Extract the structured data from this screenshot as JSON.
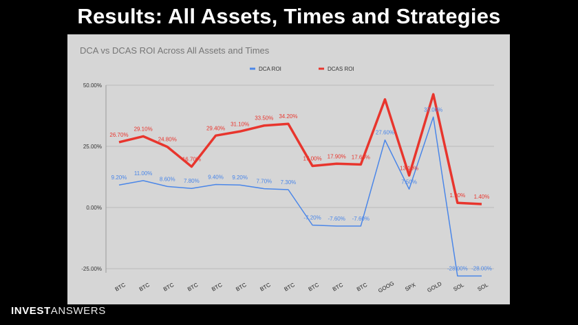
{
  "slide": {
    "title": "Results: All Assets, Times and Strategies",
    "brand_bold": "INVEST",
    "brand_light": "ANSWERS"
  },
  "colors": {
    "dca": "#4a86e8",
    "dcas": "#e8352d",
    "panel_bg": "#d6d6d6",
    "grid": "#b9b9b9"
  },
  "chart_data": {
    "type": "line",
    "title": "DCA vs DCAS ROI Across All Assets and Times",
    "legend_position": "top-center",
    "grid": true,
    "categories": [
      "BTC",
      "BTC",
      "BTC",
      "BTC",
      "BTC",
      "BTC",
      "BTC",
      "BTC",
      "BTC",
      "BTC",
      "BTC",
      "GOOG",
      "SPX",
      "GOLD",
      "SOL",
      "SOL"
    ],
    "ylim": [
      -25,
      50
    ],
    "yticks": [
      50,
      25,
      0,
      -25
    ],
    "ytick_labels": [
      "50.00%",
      "25.00%",
      "0.00%",
      "-25.00%"
    ],
    "series": [
      {
        "name": "DCA ROI",
        "color": "#4a86e8",
        "values": [
          9.2,
          11.0,
          8.6,
          7.8,
          9.4,
          9.2,
          7.7,
          7.3,
          -7.2,
          -7.6,
          -7.6,
          27.6,
          7.5,
          37.0,
          -28.0,
          -28.0
        ],
        "labels": [
          "9.20%",
          "11.00%",
          "8.60%",
          "7.80%",
          "9.40%",
          "9.20%",
          "7.70%",
          "7.30%",
          "-7.20%",
          "-7.60%",
          "-7.60%",
          "27.60%",
          "7.50%",
          "37.00%",
          "-28.00%",
          "-28.00%"
        ]
      },
      {
        "name": "DCAS ROI",
        "color": "#e8352d",
        "values": [
          26.7,
          29.1,
          24.8,
          16.7,
          29.4,
          31.1,
          33.5,
          34.2,
          17.0,
          17.9,
          17.6,
          44.2,
          13.1,
          46.3,
          1.9,
          1.4
        ],
        "labels": [
          "26.70%",
          "29.10%",
          "24.80%",
          "16.70%",
          "29.40%",
          "31.10%",
          "33.50%",
          "34.20%",
          "17.00%",
          "17.90%",
          "17.60%",
          "",
          "13.10%",
          "",
          "1.90%",
          "1.40%"
        ]
      }
    ]
  }
}
